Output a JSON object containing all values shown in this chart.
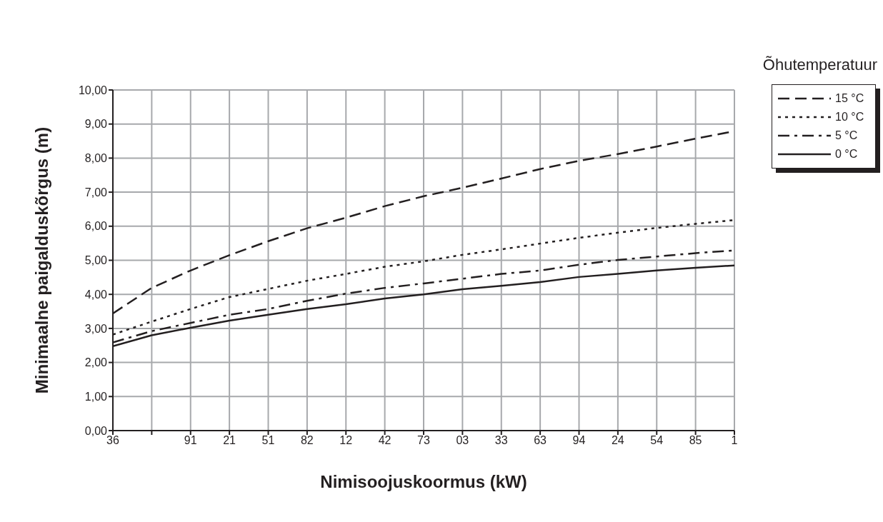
{
  "chart_data": {
    "type": "line",
    "xlabel": "Nimisoojuskoormus (kW)",
    "ylabel": "Minimaalne paigalduskõrgus (m)",
    "legend_title": "Õhutemperatuur",
    "legend": "right",
    "grid": true,
    "marker": "none",
    "categories": [
      "36",
      null,
      "91",
      "21",
      "51",
      "82",
      "12",
      "42",
      "73",
      "03",
      "33",
      "63",
      "94",
      "24",
      "54",
      "85",
      "1"
    ],
    "ylim": [
      0,
      10
    ],
    "yticks": [
      {
        "value": 0,
        "label": "0,00"
      },
      {
        "value": 1,
        "label": "1,00"
      },
      {
        "value": 2,
        "label": "2,00"
      },
      {
        "value": 3,
        "label": "3,00"
      },
      {
        "value": 4,
        "label": "4,00"
      },
      {
        "value": 5,
        "label": "5,00"
      },
      {
        "value": 6,
        "label": "6,00"
      },
      {
        "value": 7,
        "label": "7,00"
      },
      {
        "value": 8,
        "label": "8,00"
      },
      {
        "value": 9,
        "label": "9,00"
      },
      {
        "value": 10,
        "label": "10,00"
      }
    ],
    "series": [
      {
        "name": "15 °C",
        "color": "#231f20",
        "line_style": "dashed",
        "values": [
          3.44,
          4.19,
          4.7,
          5.15,
          5.56,
          5.94,
          6.25,
          6.59,
          6.88,
          7.13,
          7.4,
          7.68,
          7.92,
          8.12,
          8.34,
          8.57,
          8.79
        ]
      },
      {
        "name": "10 °C",
        "color": "#231f20",
        "line_style": "dotted",
        "values": [
          2.82,
          3.2,
          3.57,
          3.92,
          4.16,
          4.4,
          4.6,
          4.81,
          4.97,
          5.16,
          5.32,
          5.49,
          5.66,
          5.81,
          5.95,
          6.07,
          6.18
        ]
      },
      {
        "name": "5 °C",
        "color": "#231f20",
        "line_style": "dashdot",
        "values": [
          2.59,
          2.92,
          3.16,
          3.4,
          3.57,
          3.81,
          4.02,
          4.19,
          4.32,
          4.46,
          4.6,
          4.7,
          4.87,
          5.01,
          5.11,
          5.21,
          5.29
        ]
      },
      {
        "name": "0 °C",
        "color": "#231f20",
        "line_style": "solid",
        "values": [
          2.48,
          2.8,
          3.02,
          3.23,
          3.4,
          3.57,
          3.71,
          3.88,
          4.0,
          4.15,
          4.25,
          4.36,
          4.51,
          4.6,
          4.7,
          4.78,
          4.85
        ]
      }
    ]
  }
}
